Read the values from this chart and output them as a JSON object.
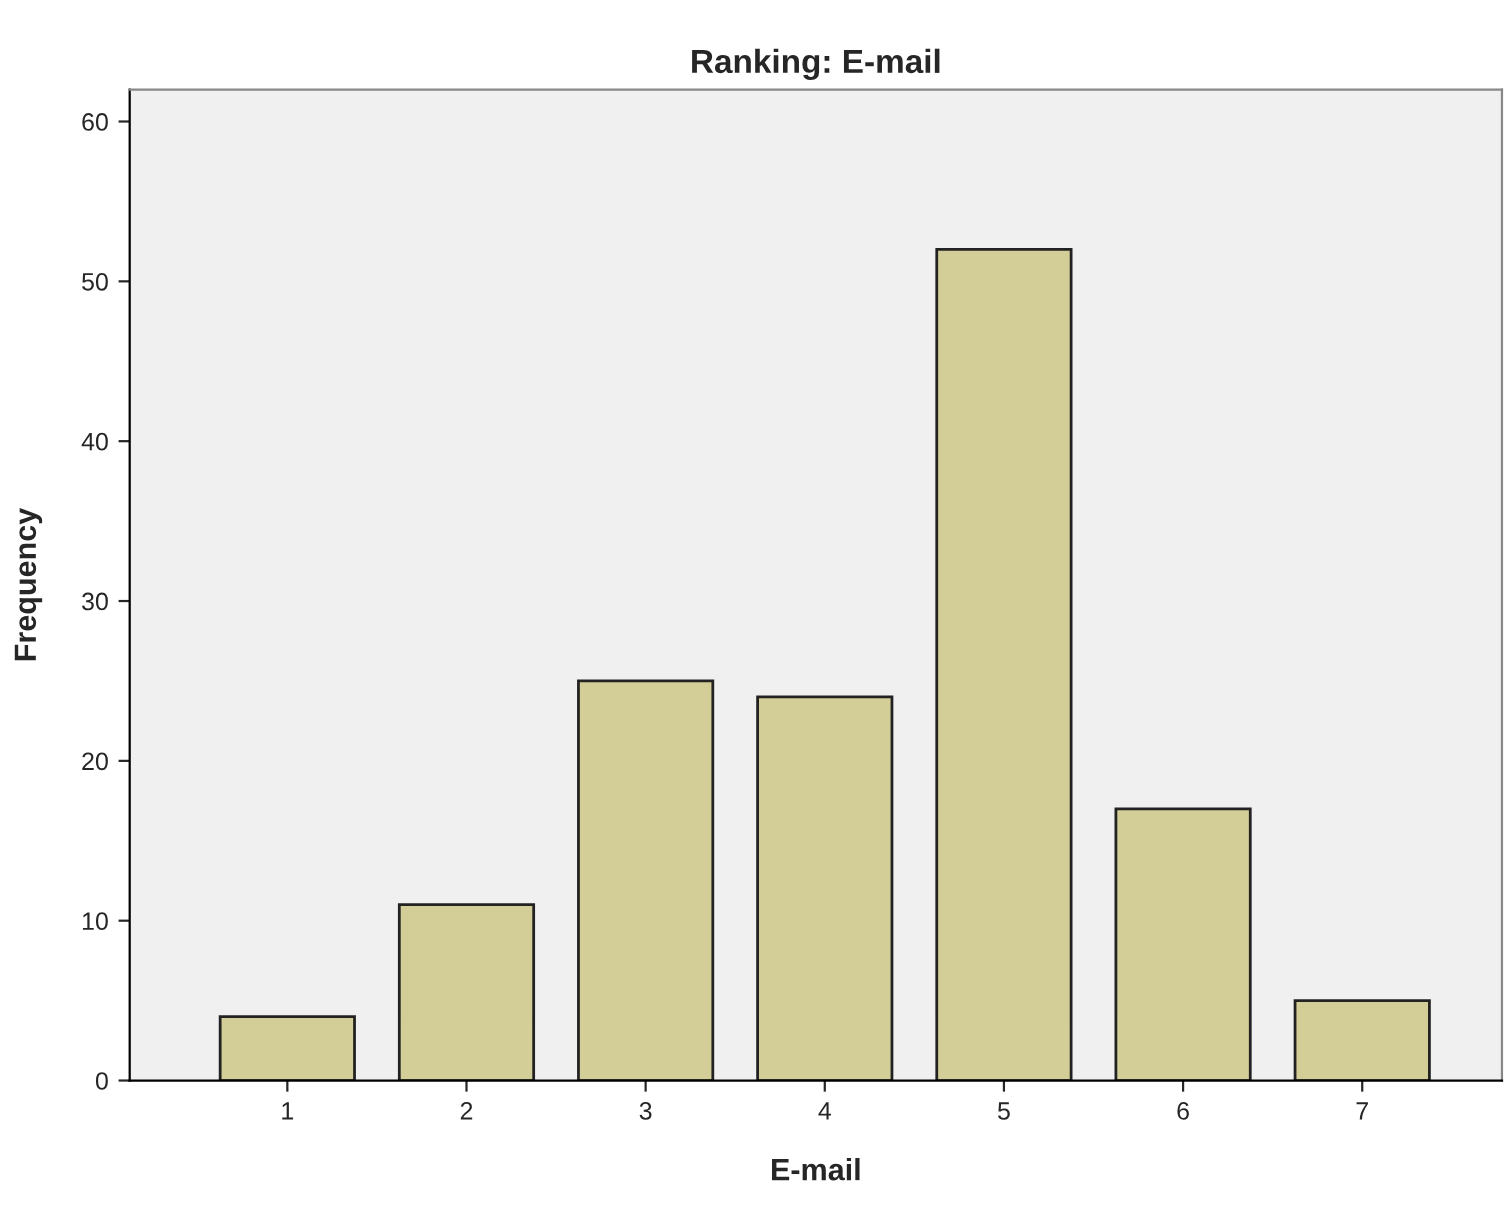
{
  "chart_data": {
    "type": "bar",
    "title": "Ranking: E-mail",
    "xlabel": "E-mail",
    "ylabel": "Frequency",
    "categories": [
      "1",
      "2",
      "3",
      "4",
      "5",
      "6",
      "7"
    ],
    "values": [
      4,
      11,
      25,
      24,
      52,
      17,
      5
    ],
    "color": "#d3ce98",
    "ylim": [
      0,
      62
    ],
    "yticks": [
      0,
      10,
      20,
      30,
      40,
      50,
      60
    ],
    "grid": false,
    "legend": false
  }
}
